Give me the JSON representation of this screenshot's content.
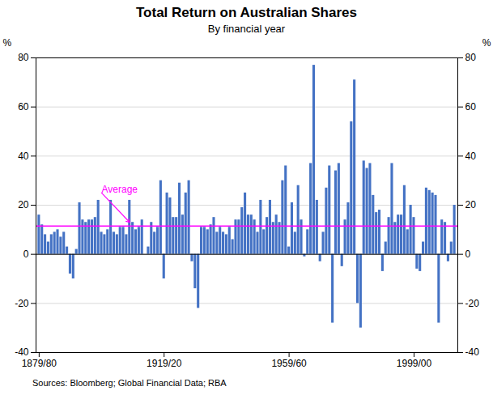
{
  "chart_data": {
    "type": "bar",
    "title": "Total Return on Australian Shares",
    "subtitle": "By financial year",
    "source": "Sources: Bloomberg; Global Financial Data; RBA",
    "color": "#4472C4",
    "ylabel": "%",
    "y2label": "%",
    "x": [
      1880,
      1881,
      1882,
      1883,
      1884,
      1885,
      1886,
      1887,
      1888,
      1889,
      1890,
      1891,
      1892,
      1893,
      1894,
      1895,
      1896,
      1897,
      1898,
      1899,
      1900,
      1901,
      1902,
      1903,
      1904,
      1905,
      1906,
      1907,
      1908,
      1909,
      1910,
      1911,
      1912,
      1913,
      1914,
      1915,
      1916,
      1917,
      1918,
      1919,
      1920,
      1921,
      1922,
      1923,
      1924,
      1925,
      1926,
      1927,
      1928,
      1929,
      1930,
      1931,
      1932,
      1933,
      1934,
      1935,
      1936,
      1937,
      1938,
      1939,
      1940,
      1941,
      1942,
      1943,
      1944,
      1945,
      1946,
      1947,
      1948,
      1949,
      1950,
      1951,
      1952,
      1953,
      1954,
      1955,
      1956,
      1957,
      1958,
      1959,
      1960,
      1961,
      1962,
      1963,
      1964,
      1965,
      1966,
      1967,
      1968,
      1969,
      1970,
      1971,
      1972,
      1973,
      1974,
      1975,
      1976,
      1977,
      1978,
      1979,
      1980,
      1981,
      1982,
      1983,
      1984,
      1985,
      1986,
      1987,
      1988,
      1989,
      1990,
      1991,
      1992,
      1993,
      1994,
      1995,
      1996,
      1997,
      1998,
      1999,
      2000,
      2001,
      2002,
      2003,
      2004,
      2005,
      2006,
      2007,
      2008,
      2009,
      2010,
      2011,
      2012,
      2013
    ],
    "values": [
      16.0,
      12.0,
      8.0,
      5.0,
      8.0,
      9.0,
      10.0,
      7.0,
      9.0,
      3.0,
      -8.0,
      -10.0,
      2.0,
      21.0,
      14.0,
      13.0,
      14.0,
      14.0,
      15.0,
      22.0,
      9.0,
      8.0,
      10.0,
      22.0,
      9.0,
      8.0,
      11.0,
      11.0,
      8.0,
      22.0,
      13.0,
      10.0,
      11.0,
      14.0,
      0.0,
      3.0,
      13.0,
      9.0,
      11.0,
      30.0,
      -10.0,
      25.0,
      23.0,
      15.0,
      15.0,
      29.0,
      16.0,
      25.0,
      30.0,
      -3.0,
      -14.0,
      -22.0,
      11.0,
      11.0,
      10.0,
      12.0,
      15.0,
      9.0,
      11.0,
      9.0,
      8.0,
      11.0,
      6.0,
      14.0,
      14.0,
      19.0,
      25.0,
      16.0,
      16.0,
      14.0,
      9.0,
      22.0,
      10.0,
      15.0,
      22.0,
      13.0,
      16.0,
      13.0,
      30.0,
      36.0,
      3.0,
      21.0,
      9.0,
      28.0,
      14.0,
      -1.0,
      10.0,
      37.0,
      77.0,
      22.0,
      -3.0,
      9.0,
      27.0,
      36.0,
      -28.0,
      34.0,
      37.0,
      -5.0,
      14.0,
      21.0,
      54.0,
      71.0,
      -20.0,
      -30.0,
      38.0,
      35.0,
      37.0,
      24.0,
      17.0,
      18.0,
      -7.0,
      5.0,
      15.0,
      37.0,
      13.0,
      16.0,
      16.0,
      28.0,
      10.0,
      20.0,
      15.0,
      -6.0,
      -7.0,
      5.0,
      27.0,
      26.0,
      25.0,
      24.0,
      -28.0,
      14.0,
      13.0,
      -3.0,
      5.0,
      20.0
    ],
    "xlim": [
      1879,
      2014
    ],
    "xticks": [
      {
        "value": 1880,
        "label": "1879/80"
      },
      {
        "value": 1920,
        "label": "1919/20"
      },
      {
        "value": 1960,
        "label": "1959/60"
      },
      {
        "value": 2000,
        "label": "1999/00"
      }
    ],
    "ylim": [
      -40,
      80
    ],
    "yticks": [
      -40,
      -20,
      0,
      20,
      40,
      60,
      80
    ],
    "y2lim": [
      -40,
      80
    ],
    "y2ticks": [
      -40,
      -20,
      0,
      20,
      40,
      60,
      80
    ],
    "grid": true,
    "average": {
      "value": 11.5,
      "color": "#FF00FF"
    },
    "annotations": [
      {
        "text": "Average",
        "x": 1900,
        "y": 25,
        "arrow_to": [
          1909,
          13.0
        ],
        "color": "#FF00FF"
      }
    ]
  }
}
